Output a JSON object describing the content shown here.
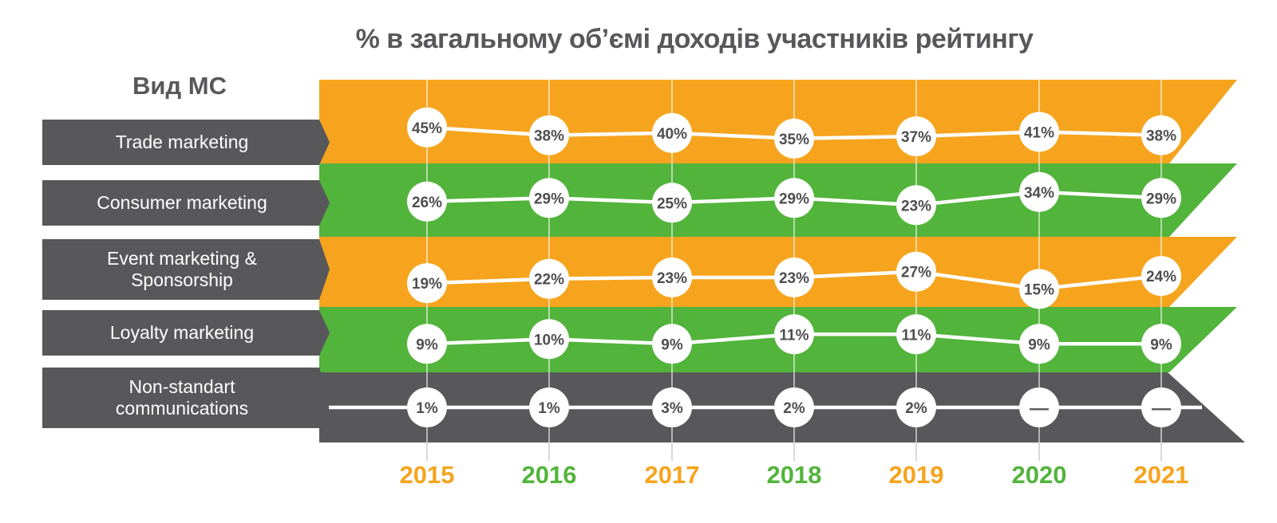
{
  "title": "% в загальному об’ємі доходів участників рейтингу",
  "left_header": "Вид МС",
  "colors": {
    "orange": "#F6A41E",
    "green": "#52B43B",
    "dark": "#58585A",
    "label_bg": "#58585A",
    "label_text": "#FFFFFF",
    "circle_fill": "#FFFFFF",
    "circle_text": "#4E4E50",
    "line": "#FFFFFF",
    "gridline_on_band": "rgba(255,255,255,0.55)",
    "gridline_below": "#D9D9D9",
    "title_text": "#58585A"
  },
  "rows": [
    {
      "label": "Trade marketing",
      "band_color": "orange"
    },
    {
      "label": "Consumer marketing",
      "band_color": "green"
    },
    {
      "label": "Event marketing &\nSponsorship",
      "band_color": "orange"
    },
    {
      "label": "Loyalty marketing",
      "band_color": "green"
    },
    {
      "label": "Non-standart\ncommunications",
      "band_color": "dark"
    }
  ],
  "years": [
    {
      "label": "2015",
      "color": "orange"
    },
    {
      "label": "2016",
      "color": "green"
    },
    {
      "label": "2017",
      "color": "orange"
    },
    {
      "label": "2018",
      "color": "green"
    },
    {
      "label": "2019",
      "color": "orange"
    },
    {
      "label": "2020",
      "color": "green"
    },
    {
      "label": "2021",
      "color": "orange"
    }
  ],
  "null_display": "—",
  "value_suffix": "%",
  "chart_data": {
    "type": "line",
    "title": "% в загальному об’ємі доходів участників рейтингу",
    "categories": [
      "2015",
      "2016",
      "2017",
      "2018",
      "2019",
      "2020",
      "2021"
    ],
    "series": [
      {
        "name": "Trade marketing",
        "values": [
          45,
          38,
          40,
          35,
          37,
          41,
          38
        ]
      },
      {
        "name": "Consumer marketing",
        "values": [
          26,
          29,
          25,
          29,
          23,
          34,
          29
        ]
      },
      {
        "name": "Event marketing & Sponsorship",
        "values": [
          19,
          22,
          23,
          23,
          27,
          15,
          24
        ]
      },
      {
        "name": "Loyalty marketing",
        "values": [
          9,
          10,
          9,
          11,
          11,
          9,
          9
        ]
      },
      {
        "name": "Non-standart communications",
        "values": [
          1,
          1,
          3,
          2,
          2,
          null,
          null
        ]
      }
    ],
    "unit": "%",
    "legend_position": "left",
    "grid": "vertical-only",
    "notes": "values shown in white bubbles on colored arrow bands; dash shown where no data"
  }
}
